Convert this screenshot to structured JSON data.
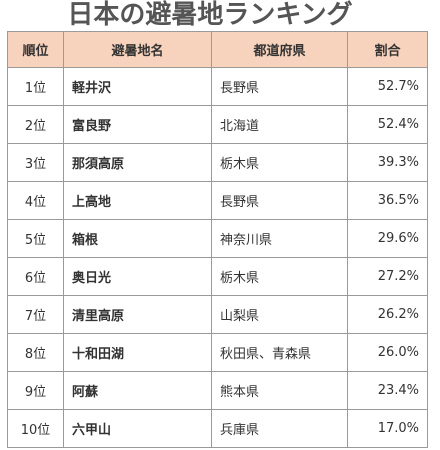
{
  "title": "日本の避暑地ランキング",
  "table": {
    "headers": {
      "rank": "順位",
      "name": "避暑地名",
      "prefecture": "都道府県",
      "percentage": "割合"
    },
    "rows": [
      {
        "rank": "1位",
        "name": "軽井沢",
        "prefecture": "長野県",
        "percentage": "52.7%"
      },
      {
        "rank": "2位",
        "name": "富良野",
        "prefecture": "北海道",
        "percentage": "52.4%"
      },
      {
        "rank": "3位",
        "name": "那須高原",
        "prefecture": "栃木県",
        "percentage": "39.3%"
      },
      {
        "rank": "4位",
        "name": "上高地",
        "prefecture": "長野県",
        "percentage": "36.5%"
      },
      {
        "rank": "5位",
        "name": "箱根",
        "prefecture": "神奈川県",
        "percentage": "29.6%"
      },
      {
        "rank": "6位",
        "name": "奥日光",
        "prefecture": "栃木県",
        "percentage": "27.2%"
      },
      {
        "rank": "7位",
        "name": "清里高原",
        "prefecture": "山梨県",
        "percentage": "26.2%"
      },
      {
        "rank": "8位",
        "name": "十和田湖",
        "prefecture": "秋田県、青森県",
        "percentage": "26.0%"
      },
      {
        "rank": "9位",
        "name": "阿蘇",
        "prefecture": "熊本県",
        "percentage": "23.4%"
      },
      {
        "rank": "10位",
        "name": "六甲山",
        "prefecture": "兵庫県",
        "percentage": "17.0%"
      }
    ]
  },
  "colors": {
    "header_background": "#f7d2bd",
    "border": "#9a9a9a",
    "title_text": "#555555"
  }
}
